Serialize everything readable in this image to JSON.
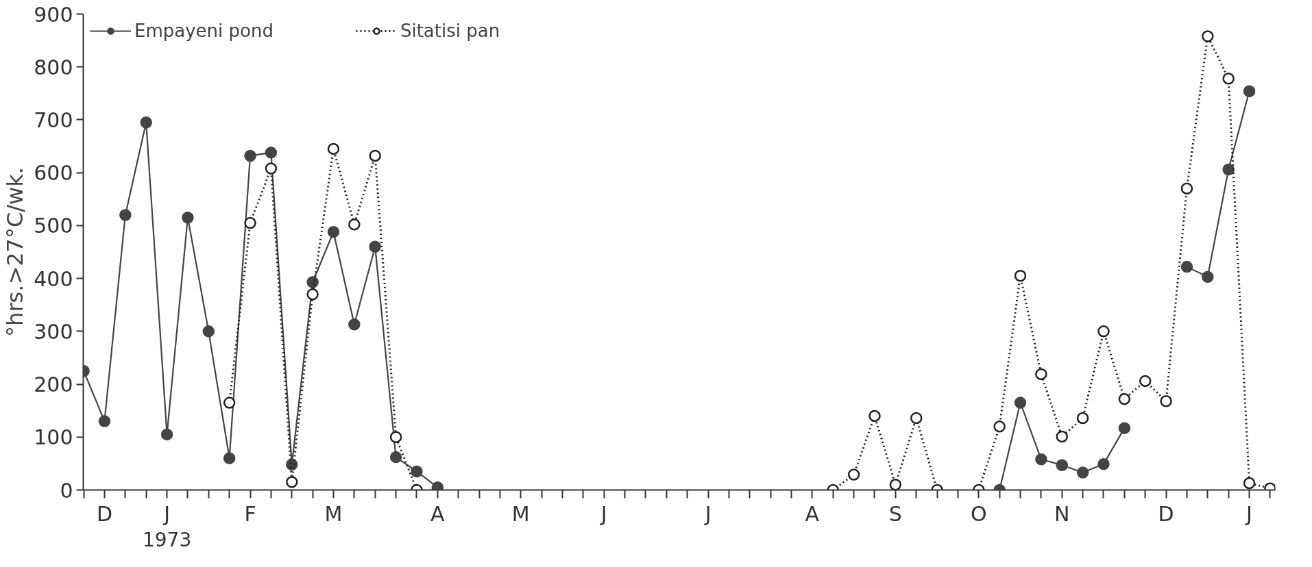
{
  "chart_data": {
    "type": "line",
    "ylabel": "°hrs.>27°C/wk.",
    "annotations": [
      "1973"
    ],
    "categories": [
      null,
      "D",
      null,
      null,
      "J",
      null,
      null,
      null,
      "F",
      null,
      null,
      null,
      "M",
      null,
      null,
      null,
      null,
      "A",
      null,
      null,
      null,
      "M",
      null,
      null,
      null,
      "J",
      null,
      null,
      null,
      null,
      "J",
      null,
      null,
      null,
      null,
      "A",
      null,
      null,
      null,
      "S",
      null,
      null,
      null,
      "O",
      null,
      null,
      null,
      "N",
      null,
      null,
      null,
      null,
      "D",
      null,
      null,
      null,
      "J",
      null
    ],
    "ylim": [
      0,
      900
    ],
    "yticks": [
      0,
      100,
      200,
      300,
      400,
      500,
      600,
      700,
      800,
      900
    ],
    "grid": false,
    "legend": "top left",
    "marker": "circle",
    "series": [
      {
        "name": "Empayeni pond",
        "color": "#444444",
        "line_style": "solid",
        "values": [
          225,
          130,
          520,
          695,
          105,
          515,
          300,
          60,
          632,
          638,
          48,
          393,
          488,
          313,
          460,
          62,
          35,
          5,
          null,
          null,
          null,
          null,
          null,
          null,
          null,
          null,
          null,
          null,
          null,
          null,
          null,
          null,
          null,
          null,
          null,
          null,
          null,
          null,
          null,
          null,
          null,
          null,
          null,
          null,
          0,
          165,
          58,
          47,
          33,
          49,
          117,
          null,
          null,
          422,
          403,
          606,
          754,
          null
        ]
      },
      {
        "name": "Sitatisi pan",
        "color": "#222222",
        "line_style": "dotted",
        "values": [
          null,
          null,
          null,
          null,
          null,
          null,
          null,
          165,
          505,
          608,
          15,
          370,
          645,
          502,
          632,
          100,
          0,
          null,
          null,
          null,
          null,
          null,
          null,
          null,
          null,
          null,
          null,
          null,
          null,
          null,
          null,
          null,
          null,
          null,
          null,
          null,
          0,
          29,
          140,
          10,
          136,
          0,
          null,
          0,
          120,
          405,
          219,
          101,
          136,
          300,
          172,
          206,
          168,
          570,
          858,
          778,
          13,
          3
        ]
      }
    ]
  }
}
